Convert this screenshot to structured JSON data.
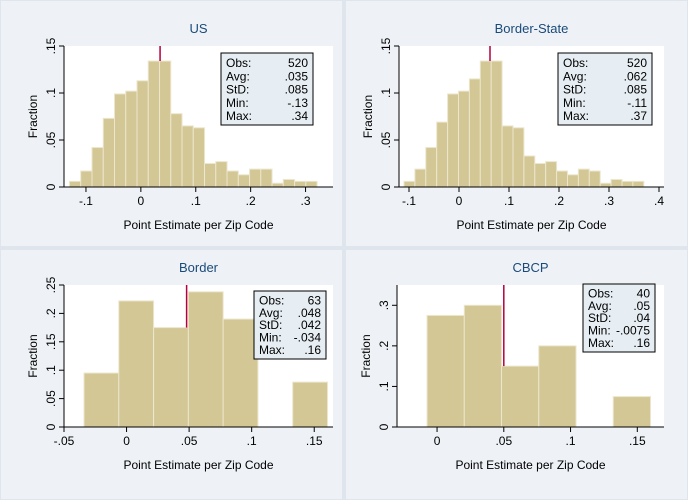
{
  "colors": {
    "bar_fill": "#d3c796",
    "bar_stroke": "#ece6cc",
    "mean_line": "#b4003c",
    "title": "#1a4a7a",
    "stats_box_fill": "#e6eef4",
    "panel_bg": "#eef2f6",
    "plot_bg": "#ffffff"
  },
  "chart_data": [
    {
      "type": "bar",
      "title": "US",
      "xlabel": "Point Estimate per Zip Code",
      "ylabel": "Fraction",
      "xlim": [
        -0.14,
        0.35
      ],
      "ylim": [
        0,
        0.15
      ],
      "xticks": [
        -0.1,
        0,
        0.1,
        0.2,
        0.3
      ],
      "xtick_labels": [
        "-.1",
        "0",
        ".1",
        ".2",
        ".3"
      ],
      "yticks": [
        0,
        0.05,
        0.1,
        0.15
      ],
      "ytick_labels": [
        "0",
        ".05",
        ".1",
        ".15"
      ],
      "bin_width": 0.0205,
      "bin_edges": [
        -0.13,
        -0.1095,
        -0.089,
        -0.0685,
        -0.048,
        -0.0275,
        -0.007,
        0.0135,
        0.034,
        0.0545,
        0.075,
        0.0955,
        0.116,
        0.1365,
        0.157,
        0.1775,
        0.198,
        0.2185,
        0.239,
        0.2595,
        0.28,
        0.3005,
        0.321
      ],
      "values": [
        0.006,
        0.017,
        0.042,
        0.073,
        0.099,
        0.102,
        0.113,
        0.134,
        0.134,
        0.078,
        0.065,
        0.063,
        0.025,
        0.027,
        0.017,
        0.013,
        0.019,
        0.019,
        0.004,
        0.008,
        0.006,
        0.006
      ],
      "mean": 0.035,
      "stats": {
        "obs": "520",
        "avg": ".035",
        "std": ".085",
        "min": "-.13",
        "max": ".34"
      }
    },
    {
      "type": "bar",
      "title": "Border-State",
      "xlabel": "Point Estimate per Zip Code",
      "ylabel": "Fraction",
      "xlim": [
        -0.12,
        0.41
      ],
      "ylim": [
        0,
        0.15
      ],
      "xticks": [
        -0.1,
        0,
        0.1,
        0.2,
        0.3,
        0.4
      ],
      "xtick_labels": [
        "-.1",
        "0",
        ".1",
        ".2",
        ".3",
        ".4"
      ],
      "yticks": [
        0,
        0.05,
        0.1,
        0.15
      ],
      "ytick_labels": [
        "0",
        ".05",
        ".1",
        ".15"
      ],
      "bin_width": 0.0218,
      "bin_edges": [
        -0.11,
        -0.0882,
        -0.0664,
        -0.0446,
        -0.0228,
        -0.001,
        0.0208,
        0.0426,
        0.0644,
        0.0862,
        0.108,
        0.1298,
        0.1516,
        0.1734,
        0.1952,
        0.217,
        0.2388,
        0.2606,
        0.2824,
        0.3042,
        0.326,
        0.3478
      ],
      "values": [
        0.006,
        0.019,
        0.042,
        0.069,
        0.099,
        0.102,
        0.115,
        0.134,
        0.134,
        0.065,
        0.063,
        0.033,
        0.025,
        0.027,
        0.017,
        0.013,
        0.019,
        0.017,
        0.004,
        0.008,
        0.006,
        0.006
      ],
      "mean": 0.062,
      "stats": {
        "obs": "520",
        "avg": ".062",
        "std": ".085",
        "min": "-.11",
        "max": ".37"
      }
    },
    {
      "type": "bar",
      "title": "Border",
      "xlabel": "Point Estimate per Zip Code",
      "ylabel": "Fraction",
      "xlim": [
        -0.05,
        0.165
      ],
      "ylim": [
        0,
        0.25
      ],
      "xticks": [
        -0.05,
        0,
        0.05,
        0.1,
        0.15
      ],
      "xtick_labels": [
        "-.05",
        "0",
        ".05",
        ".1",
        ".15"
      ],
      "yticks": [
        0,
        0.05,
        0.1,
        0.15,
        0.2,
        0.25
      ],
      "ytick_labels": [
        "0",
        ".05",
        ".1",
        ".15",
        ".2",
        ".25"
      ],
      "bin_width": 0.0278,
      "bin_edges": [
        -0.034,
        -0.0062,
        0.0216,
        0.0494,
        0.0772,
        0.105,
        0.1328
      ],
      "values": [
        0.095,
        0.222,
        0.175,
        0.238,
        0.19,
        0,
        0.079
      ],
      "mean": 0.048,
      "stats": {
        "obs": "63",
        "avg": ".048",
        "std": ".042",
        "min": "-.034",
        "max": ".16"
      }
    },
    {
      "type": "bar",
      "title": "CBCP",
      "xlabel": "Point Estimate per Zip Code",
      "ylabel": "Fraction",
      "xlim": [
        -0.03,
        0.17
      ],
      "ylim": [
        0,
        0.35
      ],
      "xticks": [
        0,
        0.05,
        0.1,
        0.15
      ],
      "xtick_labels": [
        "0",
        ".05",
        ".1",
        ".15"
      ],
      "yticks": [
        0,
        0.1,
        0.2,
        0.3
      ],
      "ytick_labels": [
        "0",
        ".1",
        ".2",
        ".3"
      ],
      "bin_width": 0.0279,
      "bin_edges": [
        -0.0075,
        0.0204,
        0.0483,
        0.0762,
        0.1041,
        0.132
      ],
      "values": [
        0.275,
        0.3,
        0.15,
        0.2,
        0,
        0.075
      ],
      "mean": 0.05,
      "stats": {
        "obs": "40",
        "avg": ".05",
        "std": ".04",
        "min": "-.0075",
        "max": ".16"
      }
    }
  ],
  "stats_labels": {
    "obs": "Obs:",
    "avg": "Avg:",
    "std": "StD:",
    "min": "Min:",
    "max": "Max:"
  }
}
